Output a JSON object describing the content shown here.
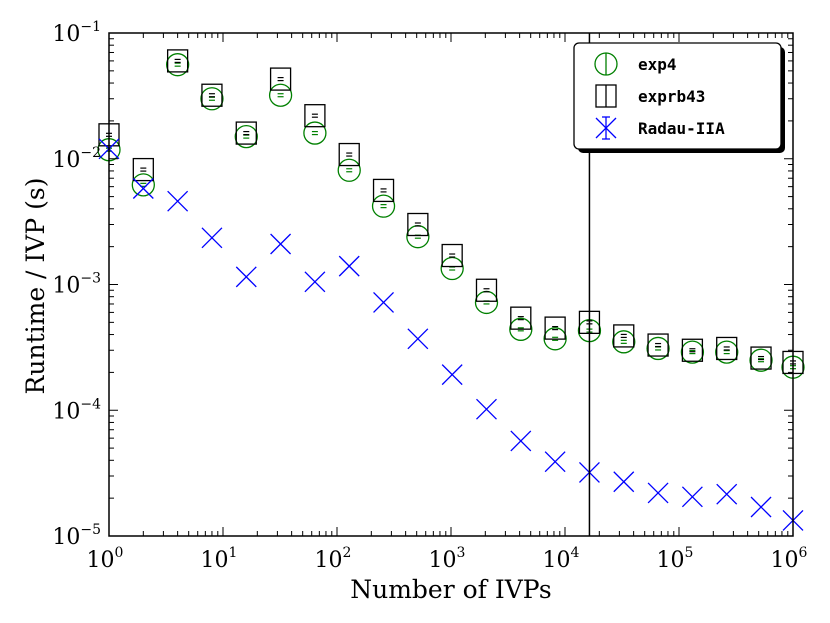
{
  "chart_data": {
    "type": "scatter",
    "title": "",
    "xlabel": "Number of IVPs",
    "ylabel": "Runtime / IVP (s)",
    "xscale": "log",
    "yscale": "log",
    "xlim": [
      1,
      1000000
    ],
    "ylim": [
      1e-05,
      0.1
    ],
    "x_ticks": [
      {
        "value": 1,
        "base": "10",
        "exp": "0"
      },
      {
        "value": 10,
        "base": "10",
        "exp": "1"
      },
      {
        "value": 100,
        "base": "10",
        "exp": "2"
      },
      {
        "value": 1000,
        "base": "10",
        "exp": "3"
      },
      {
        "value": 10000,
        "base": "10",
        "exp": "4"
      },
      {
        "value": 100000,
        "base": "10",
        "exp": "5"
      },
      {
        "value": 1000000,
        "base": "10",
        "exp": "6"
      }
    ],
    "y_ticks": [
      {
        "value": 1e-05,
        "base": "10",
        "exp": "−5"
      },
      {
        "value": 0.0001,
        "base": "10",
        "exp": "−4"
      },
      {
        "value": 0.001,
        "base": "10",
        "exp": "−3"
      },
      {
        "value": 0.01,
        "base": "10",
        "exp": "−2"
      },
      {
        "value": 0.1,
        "base": "10",
        "exp": "−1"
      }
    ],
    "grid": false,
    "vertical_line_x": 16384,
    "legend_position": "top-right",
    "x": [
      1,
      2,
      4,
      8,
      16,
      32,
      64,
      128,
      256,
      512,
      1024,
      2048,
      4096,
      8192,
      16384,
      32768,
      65536,
      131072,
      262144,
      524288,
      1048576
    ],
    "series": [
      {
        "name": "exp4",
        "marker": "circle",
        "color": "#008000",
        "values": [
          0.0118,
          0.0062,
          0.056,
          0.03,
          0.015,
          0.032,
          0.016,
          0.0081,
          0.0042,
          0.0024,
          0.00134,
          0.00072,
          0.00044,
          0.00037,
          0.00043,
          0.00035,
          0.00031,
          0.00029,
          0.00029,
          0.00025,
          0.00022
        ]
      },
      {
        "name": "exprb43",
        "marker": "square",
        "color": "#000000",
        "values": [
          0.0155,
          0.0082,
          0.06,
          0.032,
          0.016,
          0.043,
          0.022,
          0.0108,
          0.0056,
          0.003,
          0.0017,
          0.0009,
          0.00054,
          0.00045,
          0.0005,
          0.00039,
          0.00033,
          0.0003,
          0.00031,
          0.00026,
          0.00024
        ]
      },
      {
        "name": "Radau-IIA",
        "marker": "x",
        "color": "#0000ff",
        "values": [
          0.012,
          0.0058,
          0.0046,
          0.00235,
          0.00115,
          0.0021,
          0.00105,
          0.0014,
          0.00072,
          0.00037,
          0.000192,
          0.000102,
          5.7e-05,
          3.9e-05,
          3.2e-05,
          2.7e-05,
          2.2e-05,
          2.05e-05,
          2.15e-05,
          1.7e-05,
          1.33e-05
        ]
      }
    ]
  }
}
